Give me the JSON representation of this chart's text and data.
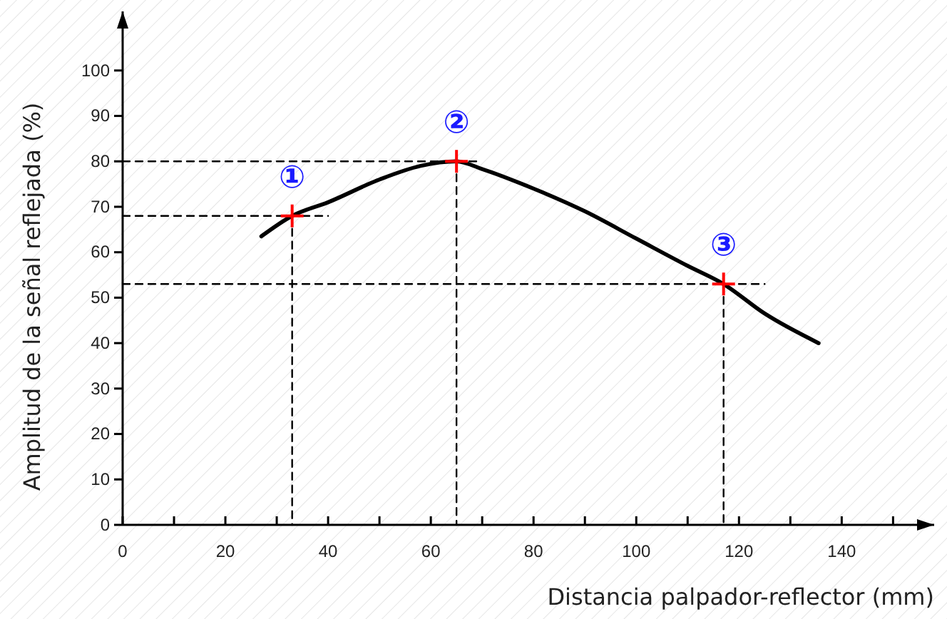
{
  "chart_data": {
    "type": "line",
    "xlabel": "Distancia palpador-reflector (mm)",
    "ylabel": "Amplitud de la señal reflejada (%)",
    "xlim": [
      0,
      158
    ],
    "ylim": [
      0,
      113
    ],
    "xticks": [
      0,
      {
        "value": 10,
        "label": null
      },
      20,
      {
        "value": 30,
        "label": null
      },
      40,
      {
        "value": 50,
        "label": null
      },
      60,
      {
        "value": 70,
        "label": null
      },
      80,
      {
        "value": 90,
        "label": null
      },
      100,
      {
        "value": 110,
        "label": null
      },
      120,
      {
        "value": 130,
        "label": null
      },
      140,
      {
        "value": 150,
        "label": null
      }
    ],
    "yticks": [
      0,
      10,
      20,
      30,
      40,
      50,
      60,
      70,
      80,
      90,
      100
    ],
    "grid": false,
    "series": [
      {
        "type": "line",
        "color": "#000000",
        "line_style": "dashed",
        "marker": "none",
        "x": [
          0,
          40,
          null,
          33,
          33
        ],
        "values": [
          68,
          68,
          null,
          68,
          0
        ]
      },
      {
        "type": "line",
        "color": "#000000",
        "line_style": "dashed",
        "marker": "none",
        "x": [
          0,
          69,
          null,
          65,
          65
        ],
        "values": [
          80,
          80,
          null,
          80,
          0
        ]
      },
      {
        "type": "line",
        "color": "#000000",
        "line_style": "dashed",
        "marker": "none",
        "x": [
          0,
          125,
          null,
          117,
          117
        ],
        "values": [
          53,
          53,
          null,
          53,
          0
        ]
      },
      {
        "color": "#000000",
        "line_style": "solid",
        "marker": "none",
        "x": [
          27,
          33,
          40,
          50,
          58,
          65,
          70,
          80,
          90,
          100,
          110,
          117,
          125,
          135.5
        ],
        "values": [
          63.5,
          68,
          71,
          76,
          79,
          80,
          78.3,
          74,
          69,
          63,
          57,
          53,
          46.5,
          40
        ]
      },
      {
        "type": "scatter",
        "color": "#ff0000",
        "marker": "cross",
        "x": [
          33,
          65,
          117
        ],
        "values": [
          68,
          80,
          53
        ]
      }
    ],
    "annotations": [
      {
        "text": "①",
        "x": 33,
        "y": 68
      },
      {
        "text": "②",
        "x": 65,
        "y": 80
      },
      {
        "text": "③",
        "x": 117,
        "y": 53
      }
    ]
  }
}
